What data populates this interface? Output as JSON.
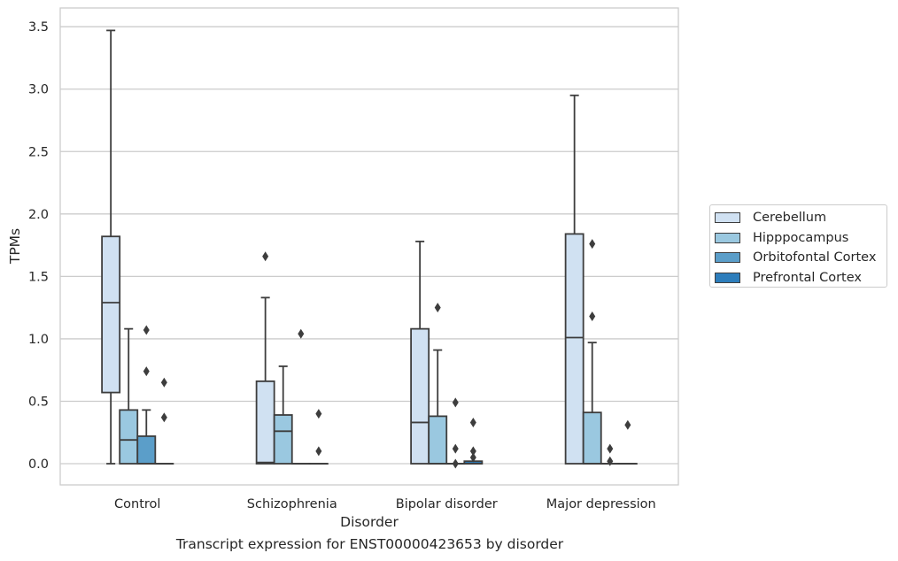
{
  "caption": "Transcript expression for ENST00000423653 by disorder",
  "chart_data": {
    "type": "box",
    "xlabel": "Disorder",
    "ylabel": "TPMs",
    "ylim": [
      -0.17,
      3.65
    ],
    "yticks": [
      "0.0",
      "0.5",
      "1.0",
      "1.5",
      "2.0",
      "2.5",
      "3.0",
      "3.5"
    ],
    "ytick_values": [
      0,
      0.5,
      1.0,
      1.5,
      2.0,
      2.5,
      3.0,
      3.5
    ],
    "grid": "horizontal",
    "legend_position": "right",
    "categories": [
      "Control",
      "Schizophrenia",
      "Bipolar disorder",
      "Major depression"
    ],
    "series": [
      {
        "name": "Cerebellum",
        "color": "#d0e1f2",
        "boxes": [
          {
            "min": 0.0,
            "q1": 0.57,
            "median": 1.29,
            "q3": 1.82,
            "max": 3.47,
            "outliers": []
          },
          {
            "min": 0.0,
            "q1": 0.0,
            "median": 0.01,
            "q3": 0.66,
            "max": 1.33,
            "outliers": [
              1.66
            ]
          },
          {
            "min": 0.0,
            "q1": 0.0,
            "median": 0.33,
            "q3": 1.08,
            "max": 1.78,
            "outliers": []
          },
          {
            "min": 0.0,
            "q1": 0.0,
            "median": 1.01,
            "q3": 1.84,
            "max": 2.95,
            "outliers": []
          }
        ]
      },
      {
        "name": "Hipppocampus",
        "color": "#9ac8e0",
        "boxes": [
          {
            "min": 0.0,
            "q1": 0.0,
            "median": 0.19,
            "q3": 0.43,
            "max": 1.08,
            "outliers": []
          },
          {
            "min": 0.0,
            "q1": 0.0,
            "median": 0.26,
            "q3": 0.39,
            "max": 0.78,
            "outliers": []
          },
          {
            "min": 0.0,
            "q1": 0.0,
            "median": 0.0,
            "q3": 0.38,
            "max": 0.91,
            "outliers": [
              1.25
            ]
          },
          {
            "min": 0.0,
            "q1": 0.0,
            "median": 0.0,
            "q3": 0.41,
            "max": 0.97,
            "outliers": [
              1.18,
              1.76
            ]
          }
        ]
      },
      {
        "name": "Orbitofontal Cortex",
        "color": "#5b9ec9",
        "boxes": [
          {
            "min": 0.0,
            "q1": 0.0,
            "median": 0.0,
            "q3": 0.22,
            "max": 0.43,
            "outliers": [
              0.74,
              1.07
            ]
          },
          {
            "min": 0.0,
            "q1": 0.0,
            "median": 0.0,
            "q3": 0.0,
            "max": 0.0,
            "outliers": [
              1.04
            ]
          },
          {
            "min": 0.0,
            "q1": 0.0,
            "median": 0.0,
            "q3": 0.0,
            "max": 0.0,
            "outliers": [
              0.0,
              0.12,
              0.49
            ]
          },
          {
            "min": 0.0,
            "q1": 0.0,
            "median": 0.0,
            "q3": 0.0,
            "max": 0.0,
            "outliers": [
              0.02,
              0.12
            ]
          }
        ]
      },
      {
        "name": "Prefrontal Cortex",
        "color": "#2d7dbb",
        "boxes": [
          {
            "min": 0.0,
            "q1": 0.0,
            "median": 0.0,
            "q3": 0.0,
            "max": 0.0,
            "outliers": [
              0.37,
              0.65
            ]
          },
          {
            "min": 0.0,
            "q1": 0.0,
            "median": 0.0,
            "q3": 0.0,
            "max": 0.0,
            "outliers": [
              0.1,
              0.4
            ]
          },
          {
            "min": 0.0,
            "q1": 0.0,
            "median": 0.0,
            "q3": 0.02,
            "max": 0.02,
            "outliers": [
              0.05,
              0.1,
              0.33
            ]
          },
          {
            "min": 0.0,
            "q1": 0.0,
            "median": 0.0,
            "q3": 0.0,
            "max": 0.0,
            "outliers": [
              0.31
            ]
          }
        ]
      }
    ]
  }
}
